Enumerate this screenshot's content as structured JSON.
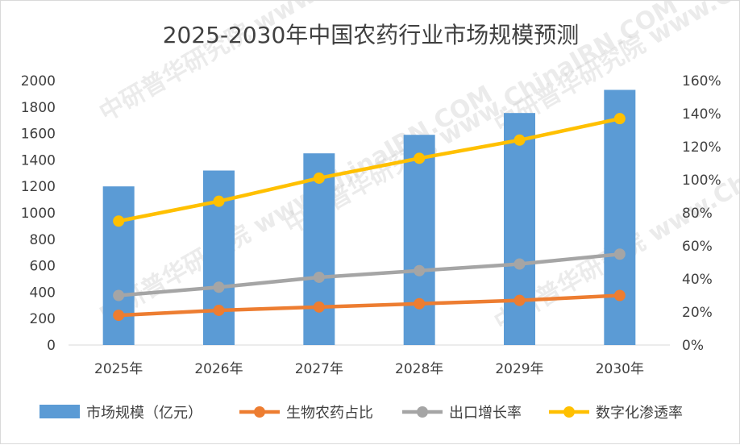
{
  "chart_data": {
    "type": "bar+line",
    "title": "2025-2030年中国农药行业市场规模预测",
    "categories": [
      "2025年",
      "2026年",
      "2027年",
      "2028年",
      "2029年",
      "2030年"
    ],
    "bar_series": {
      "name": "市场规模（亿元）",
      "axis": "left",
      "color": "#5b9bd5",
      "values": [
        1200,
        1320,
        1450,
        1590,
        1755,
        1930
      ]
    },
    "line_series": [
      {
        "name": "生物农药占比",
        "axis": "right",
        "color": "#ed7d31",
        "values": [
          0.18,
          0.21,
          0.23,
          0.25,
          0.27,
          0.3
        ]
      },
      {
        "name": "出口增长率",
        "axis": "right",
        "color": "#a5a5a5",
        "values": [
          0.3,
          0.35,
          0.41,
          0.45,
          0.49,
          0.55
        ]
      },
      {
        "name": "数字化渗透率",
        "axis": "right",
        "color": "#ffc000",
        "values": [
          0.75,
          0.87,
          1.01,
          1.13,
          1.24,
          1.37
        ]
      }
    ],
    "left_axis": {
      "min": 0,
      "max": 2000,
      "step": 200,
      "ticks": [
        "0",
        "200",
        "400",
        "600",
        "800",
        "1000",
        "1200",
        "1400",
        "1600",
        "1800",
        "2000"
      ]
    },
    "right_axis": {
      "min": 0,
      "max": 1.6,
      "step": 0.2,
      "ticks": [
        "0%",
        "20%",
        "40%",
        "60%",
        "80%",
        "100%",
        "120%",
        "140%",
        "160%"
      ]
    },
    "grid": false,
    "legend_position": "bottom"
  },
  "watermark": "中研普华研究院 www.ChinaIRN.COM"
}
